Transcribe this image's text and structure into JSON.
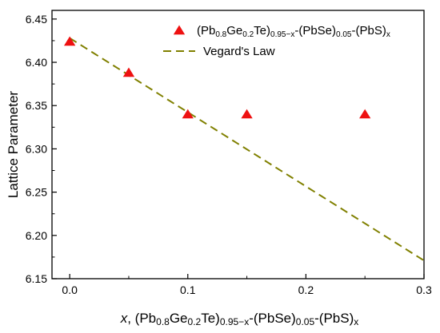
{
  "chart_data": {
    "type": "scatter",
    "title": "",
    "xlim": [
      -0.015,
      0.3
    ],
    "ylim": [
      6.15,
      6.46
    ],
    "x_ticks": [
      0.0,
      0.1,
      0.2,
      0.3
    ],
    "x_tick_labels": [
      "0.0",
      "0.1",
      "0.2",
      "0.3"
    ],
    "y_ticks": [
      6.15,
      6.2,
      6.25,
      6.3,
      6.35,
      6.4,
      6.45
    ],
    "y_tick_labels": [
      "6.15",
      "6.20",
      "6.25",
      "6.30",
      "6.35",
      "6.40",
      "6.45"
    ],
    "xlabel": {
      "var": "x",
      "sep": ",",
      "parts": [
        {
          "t": "(Pb"
        },
        {
          "t": "0.8",
          "sub": true
        },
        {
          "t": "Ge"
        },
        {
          "t": "0.2",
          "sub": true
        },
        {
          "t": "Te)"
        },
        {
          "t": "0.95−x",
          "sub": true
        },
        {
          "t": "-(PbSe)"
        },
        {
          "t": "0.05",
          "sub": true
        },
        {
          "t": "-(PbS)"
        },
        {
          "t": "x",
          "sub": true
        }
      ]
    },
    "ylabel": "Lattice Parameter",
    "legend_position": "top-right",
    "series": [
      {
        "kind": "scatter",
        "marker": "triangle",
        "color": "#ee1111",
        "label_parts": [
          {
            "t": "(Pb"
          },
          {
            "t": "0.8",
            "sub": true
          },
          {
            "t": "Ge"
          },
          {
            "t": "0.2",
            "sub": true
          },
          {
            "t": "Te)"
          },
          {
            "t": "0.95−x",
            "sub": true
          },
          {
            "t": "-(PbSe)"
          },
          {
            "t": "0.05",
            "sub": true
          },
          {
            "t": "-(PbS)"
          },
          {
            "t": "x",
            "sub": true
          }
        ],
        "x": [
          0.0,
          0.05,
          0.1,
          0.15,
          0.25
        ],
        "y": [
          6.424,
          6.388,
          6.34,
          6.34,
          6.34
        ]
      },
      {
        "kind": "line",
        "dash": true,
        "color": "#808000",
        "name": "Vegard's Law",
        "x": [
          0.0,
          0.3
        ],
        "y": [
          6.428,
          6.171
        ]
      }
    ]
  }
}
